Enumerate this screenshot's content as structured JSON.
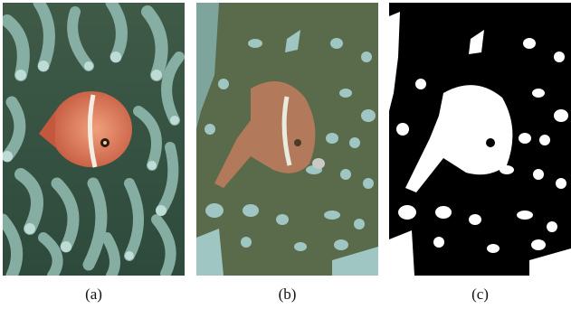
{
  "panels": [
    {
      "caption": "(a)"
    },
    {
      "caption": "(b)"
    },
    {
      "caption": "(c)"
    }
  ],
  "colors": {
    "background_b": "#5a6b4c",
    "fish": "#d98563",
    "fish_b": "#b27a5a",
    "tentacle": "#9fc6c2",
    "mask_fg": "#ffffff",
    "mask_bg": "#000000"
  }
}
